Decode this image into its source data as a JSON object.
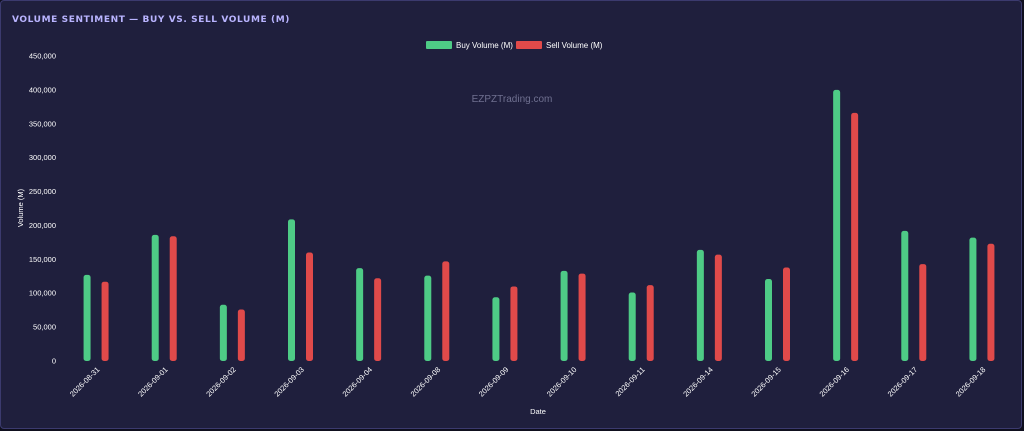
{
  "panel": {
    "title": "VOLUME SENTIMENT — BUY VS. SELL VOLUME (M)"
  },
  "watermark": "EZPZTrading.com",
  "colors": {
    "buy": "#4ecb86",
    "sell": "#e04a4a",
    "background": "#1f1f3d",
    "title": "#b9b4ff"
  },
  "chart_data": {
    "type": "bar",
    "title": "",
    "xlabel": "Date",
    "ylabel": "Volume (M)",
    "ylim": [
      0,
      450000
    ],
    "yticks": [
      "0",
      "50,000",
      "100,000",
      "150,000",
      "200,000",
      "250,000",
      "300,000",
      "350,000",
      "400,000",
      "450,000"
    ],
    "legend_position": "top-center",
    "grid": false,
    "categories": [
      "2026-08-31",
      "2026-09-01",
      "2026-09-02",
      "2026-09-03",
      "2026-09-04",
      "2026-09-08",
      "2026-09-09",
      "2026-09-10",
      "2026-09-11",
      "2026-09-14",
      "2026-09-15",
      "2026-09-16",
      "2026-09-17",
      "2026-09-18"
    ],
    "series": [
      {
        "name": "Buy Volume (M)",
        "values": [
          127000,
          186000,
          83000,
          209000,
          137000,
          126000,
          94000,
          133000,
          101000,
          164000,
          121000,
          400000,
          192000,
          182000
        ]
      },
      {
        "name": "Sell Volume (M)",
        "values": [
          117000,
          184000,
          76000,
          160000,
          122000,
          147000,
          110000,
          129000,
          112000,
          157000,
          138000,
          366000,
          143000,
          173000
        ]
      }
    ]
  }
}
